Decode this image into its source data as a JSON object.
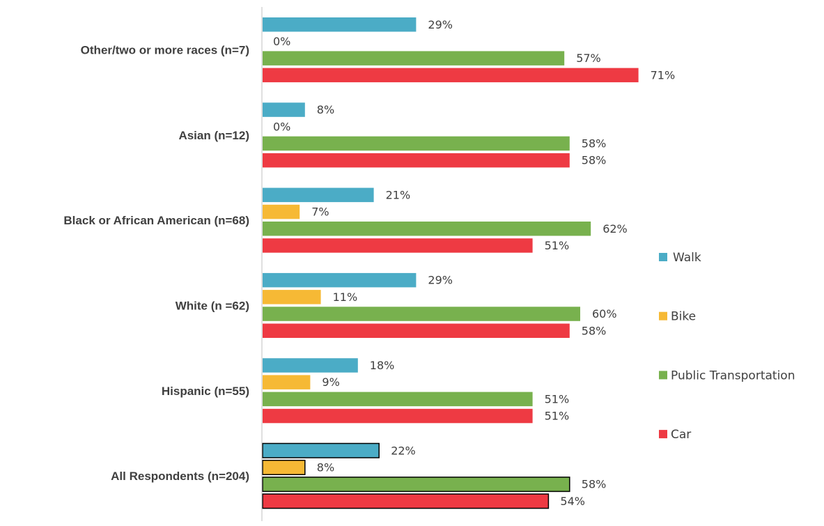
{
  "chart_data": {
    "type": "bar",
    "orientation": "horizontal",
    "categories": [
      "Other/two or  more races (n=7)",
      "Asian (n=12)",
      "Black or African American (n=68)",
      "White (n =62)",
      "Hispanic (n=55)",
      "All Respondents (n=204)"
    ],
    "series": [
      {
        "name": "Walk",
        "color": "#4bacc6",
        "values": [
          29,
          8,
          21,
          29,
          18,
          22
        ],
        "labels": [
          "29%",
          "8%",
          "21%",
          "29%",
          "18%",
          "22%"
        ]
      },
      {
        "name": "Bike",
        "color": "#f6b935",
        "values": [
          0,
          0,
          7,
          11,
          9,
          8
        ],
        "labels": [
          "0%",
          "0%",
          "7%",
          "11%",
          "9%",
          "8%"
        ]
      },
      {
        "name": "Public Transportation",
        "color": "#78b14e",
        "values": [
          57,
          58,
          62,
          60,
          51,
          58
        ],
        "labels": [
          "57%",
          "58%",
          "62%",
          "60%",
          "51%",
          "58%"
        ]
      },
      {
        "name": "Car",
        "color": "#ee3a43",
        "values": [
          71,
          58,
          51,
          58,
          51,
          54
        ],
        "labels": [
          "71%",
          "58%",
          "51%",
          "58%",
          "51%",
          "54%"
        ]
      }
    ],
    "highlighted_category": "All Respondents (n=204)",
    "xlim": [
      0,
      100
    ],
    "grid": false,
    "legend": "right",
    "title": "",
    "xlabel": "",
    "ylabel": ""
  }
}
